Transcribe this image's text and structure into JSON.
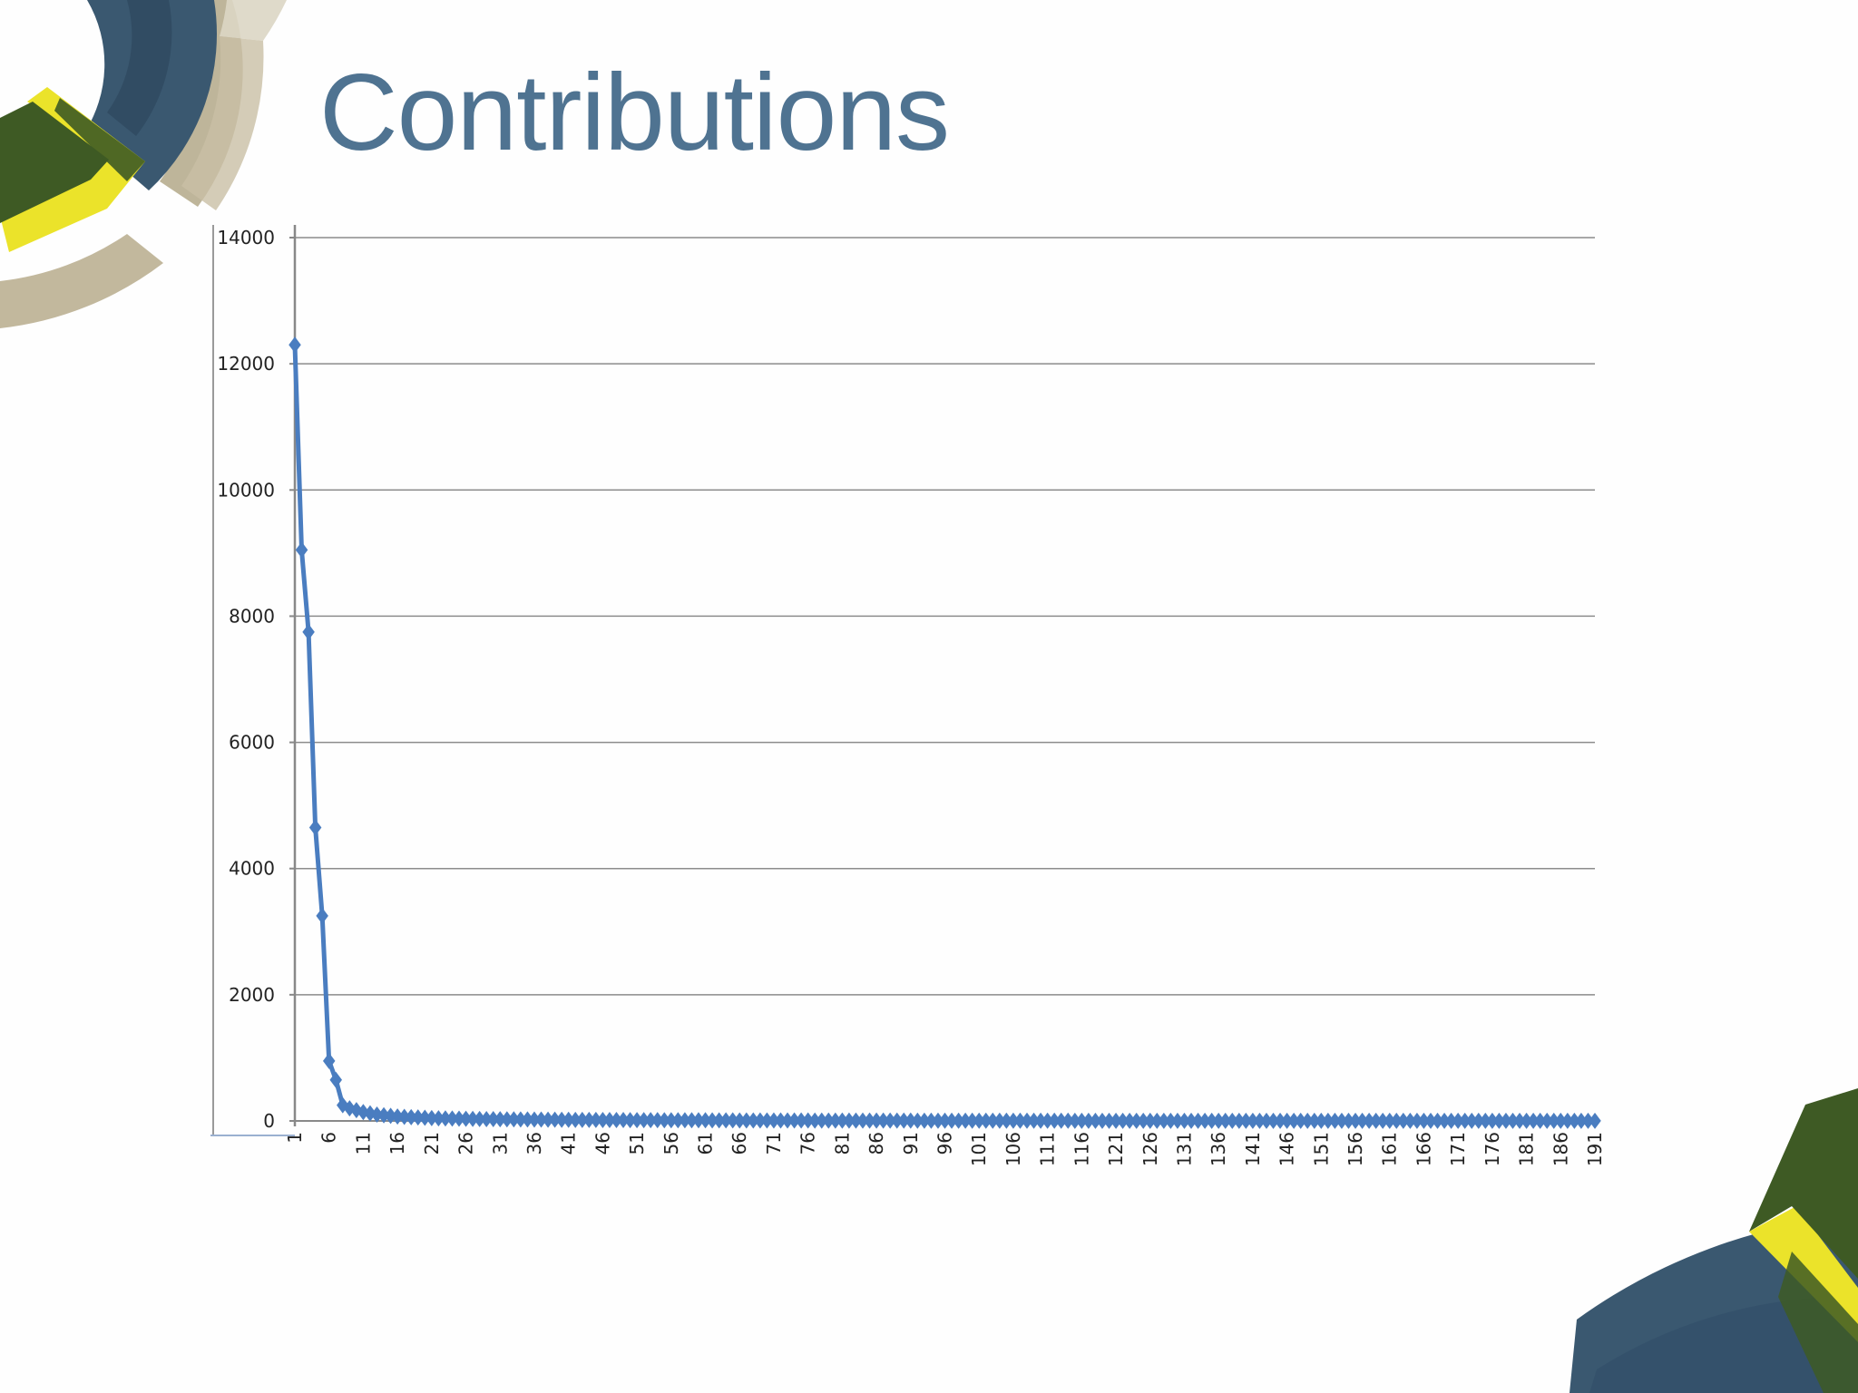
{
  "slide": {
    "title": "Contributions"
  },
  "colors": {
    "title": "#4f7391",
    "series": "#4a7dc0",
    "gridline": "#8c8c8c",
    "deco_navy": "#3a5870",
    "deco_green": "#3e5a24",
    "deco_yellow": "#ebe32a",
    "deco_tan": "#bcb297"
  },
  "chart_data": {
    "type": "line",
    "marker": "diamond",
    "title": "",
    "xlabel": "",
    "ylabel": "",
    "ylim": [
      0,
      14000
    ],
    "y_ticks": [
      0,
      2000,
      4000,
      6000,
      8000,
      10000,
      12000,
      14000
    ],
    "x_range": [
      1,
      191
    ],
    "x_tick_labels": [
      1,
      6,
      11,
      16,
      21,
      26,
      31,
      36,
      41,
      46,
      51,
      56,
      61,
      66,
      71,
      76,
      81,
      86,
      91,
      96,
      101,
      106,
      111,
      116,
      121,
      126,
      131,
      136,
      141,
      146,
      151,
      156,
      161,
      166,
      171,
      176,
      181,
      186,
      191
    ],
    "grid": true,
    "legend": "none",
    "series": [
      {
        "x": [
          1,
          2,
          3,
          4,
          5,
          6,
          7,
          8,
          9,
          10,
          11,
          12,
          13,
          14,
          15,
          16,
          17,
          18,
          19,
          20,
          21,
          22,
          23,
          24,
          25,
          26,
          27,
          28,
          29,
          30,
          31,
          32,
          33,
          34,
          35,
          36,
          37,
          38,
          39,
          40,
          41,
          42,
          43,
          44,
          45,
          46,
          47,
          48,
          49,
          50,
          51,
          52,
          53,
          54,
          55,
          56,
          57,
          58,
          59,
          60,
          61,
          62,
          63,
          64,
          65,
          66,
          67,
          68,
          69,
          70,
          71,
          72,
          73,
          74,
          75,
          76,
          77,
          78,
          79,
          80,
          81,
          82,
          83,
          84,
          85,
          86,
          87,
          88,
          89,
          90,
          91,
          92,
          93,
          94,
          95,
          96,
          97,
          98,
          99,
          100,
          101,
          102,
          103,
          104,
          105,
          106,
          107,
          108,
          109,
          110,
          111,
          112,
          113,
          114,
          115,
          116,
          117,
          118,
          119,
          120,
          121,
          122,
          123,
          124,
          125,
          126,
          127,
          128,
          129,
          130,
          131,
          132,
          133,
          134,
          135,
          136,
          137,
          138,
          139,
          140,
          141,
          142,
          143,
          144,
          145,
          146,
          147,
          148,
          149,
          150,
          151,
          152,
          153,
          154,
          155,
          156,
          157,
          158,
          159,
          160,
          161,
          162,
          163,
          164,
          165,
          166,
          167,
          168,
          169,
          170,
          171,
          172,
          173,
          174,
          175,
          176,
          177,
          178,
          179,
          180,
          181,
          182,
          183,
          184,
          185,
          186,
          187,
          188,
          189,
          190,
          191
        ],
        "values": [
          12300,
          9050,
          7750,
          4650,
          3250,
          950,
          650,
          250,
          200,
          170,
          140,
          120,
          100,
          90,
          80,
          70,
          65,
          60,
          55,
          50,
          45,
          42,
          40,
          38,
          36,
          34,
          32,
          30,
          29,
          28,
          27,
          26,
          25,
          24,
          23,
          22,
          21,
          20,
          19,
          18,
          18,
          17,
          17,
          16,
          16,
          15,
          15,
          14,
          14,
          13,
          13,
          12,
          12,
          12,
          11,
          11,
          11,
          10,
          10,
          10,
          10,
          9,
          9,
          9,
          9,
          8,
          8,
          8,
          8,
          8,
          7,
          7,
          7,
          7,
          7,
          7,
          6,
          6,
          6,
          6,
          6,
          6,
          6,
          5,
          5,
          5,
          5,
          5,
          5,
          5,
          5,
          4,
          4,
          4,
          4,
          4,
          4,
          4,
          4,
          4,
          4,
          3,
          3,
          3,
          3,
          3,
          3,
          3,
          3,
          3,
          3,
          3,
          3,
          3,
          2,
          2,
          2,
          2,
          2,
          2,
          2,
          2,
          2,
          2,
          2,
          2,
          2,
          2,
          2,
          2,
          2,
          2,
          2,
          2,
          1,
          1,
          1,
          1,
          1,
          1,
          1,
          1,
          1,
          1,
          1,
          1,
          1,
          1,
          1,
          1,
          1,
          1,
          1,
          1,
          1,
          1,
          1,
          1,
          1,
          1,
          1,
          1,
          1,
          1,
          1,
          1,
          1,
          1,
          1,
          1,
          1,
          1,
          1,
          1,
          1,
          1,
          1,
          1,
          1,
          1,
          1,
          1,
          1,
          1,
          1,
          1,
          1,
          1,
          1,
          1,
          1
        ]
      }
    ]
  }
}
